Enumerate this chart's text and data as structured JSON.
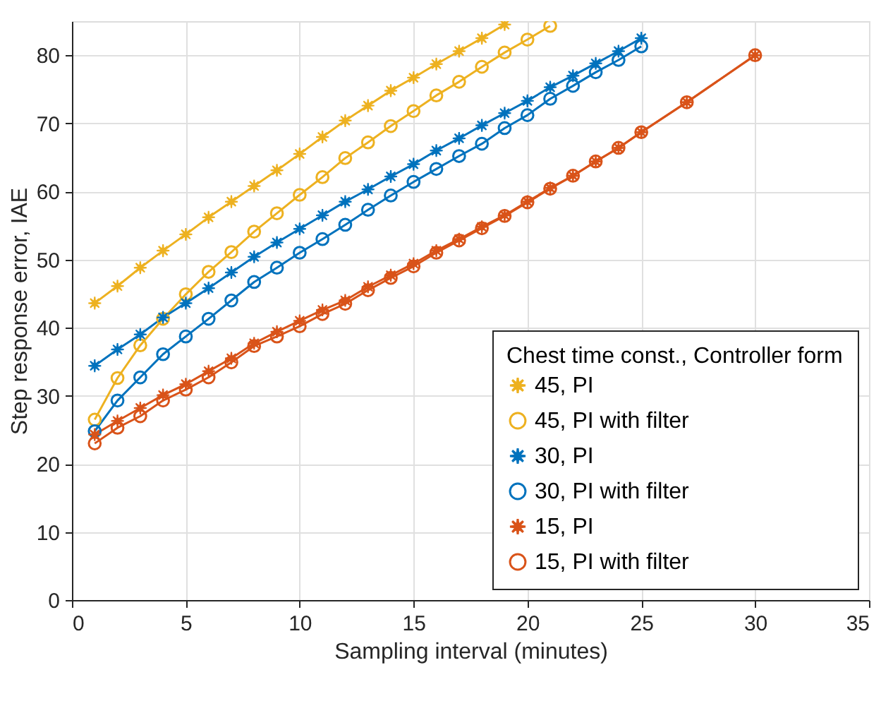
{
  "chart_data": {
    "type": "line",
    "xlabel": "Sampling interval (minutes)",
    "ylabel": "Step response error, IAE",
    "legend_title": "Chest time const., Controller form",
    "legend": "bottom right",
    "grid": true,
    "xlim": [
      0,
      35
    ],
    "xticks": [
      0,
      5,
      10,
      15,
      20,
      25,
      30,
      35
    ],
    "ylim": [
      0,
      85
    ],
    "yticks": [
      0,
      10,
      20,
      30,
      40,
      50,
      60,
      70,
      80
    ],
    "series": [
      {
        "name": "45, PI",
        "color": "#edb120",
        "marker": "star",
        "x": [
          1,
          2,
          3,
          4,
          5,
          6,
          7,
          8,
          9,
          10,
          11,
          12,
          13,
          14,
          15,
          16,
          17,
          18,
          19
        ],
        "values": [
          43.6,
          46.1,
          48.8,
          51.3,
          53.7,
          56.2,
          58.5,
          60.8,
          63.1,
          65.5,
          68.0,
          70.4,
          72.6,
          74.8,
          76.7,
          78.7,
          80.6,
          82.5,
          84.5
        ]
      },
      {
        "name": "45, PI with filter",
        "color": "#edb120",
        "marker": "circle",
        "x": [
          1,
          2,
          3,
          4,
          5,
          6,
          7,
          8,
          9,
          10,
          11,
          12,
          13,
          14,
          15,
          16,
          17,
          18,
          19,
          20,
          21
        ],
        "values": [
          26.5,
          32.6,
          37.4,
          41.3,
          44.9,
          48.2,
          51.1,
          54.1,
          56.8,
          59.5,
          62.1,
          64.9,
          67.2,
          69.6,
          71.8,
          74.1,
          76.1,
          78.3,
          80.4,
          82.3,
          84.3
        ]
      },
      {
        "name": "30, PI",
        "color": "#0072bd",
        "marker": "star",
        "x": [
          1,
          2,
          3,
          4,
          5,
          6,
          7,
          8,
          9,
          10,
          11,
          12,
          13,
          14,
          15,
          16,
          17,
          18,
          19,
          20,
          21,
          22,
          23,
          24,
          25
        ],
        "values": [
          34.4,
          36.8,
          39.0,
          41.5,
          43.6,
          45.8,
          48.1,
          50.4,
          52.5,
          54.5,
          56.5,
          58.5,
          60.3,
          62.2,
          64.0,
          66.0,
          67.8,
          69.7,
          71.5,
          73.3,
          75.3,
          77.0,
          78.8,
          80.6,
          82.5
        ]
      },
      {
        "name": "30, PI with filter",
        "color": "#0072bd",
        "marker": "circle",
        "x": [
          1,
          2,
          3,
          4,
          5,
          6,
          7,
          8,
          9,
          10,
          11,
          12,
          13,
          14,
          15,
          16,
          17,
          18,
          19,
          20,
          21,
          22,
          23,
          24,
          25
        ],
        "values": [
          24.8,
          29.3,
          32.7,
          36.1,
          38.7,
          41.3,
          44.0,
          46.7,
          48.8,
          51.0,
          53.0,
          55.1,
          57.3,
          59.4,
          61.4,
          63.3,
          65.2,
          67.0,
          69.3,
          71.2,
          73.6,
          75.5,
          77.5,
          79.3,
          81.3
        ]
      },
      {
        "name": "15, PI",
        "color": "#d95319",
        "marker": "star",
        "x": [
          1,
          2,
          3,
          4,
          5,
          6,
          7,
          8,
          9,
          10,
          11,
          12,
          13,
          14,
          15,
          16,
          17,
          18,
          19,
          20,
          21,
          22,
          23,
          24,
          25,
          27,
          30
        ],
        "values": [
          24.3,
          26.3,
          28.2,
          30.1,
          31.7,
          33.6,
          35.5,
          37.7,
          39.4,
          41.0,
          42.6,
          44.0,
          46.0,
          47.7,
          49.4,
          51.3,
          53.0,
          54.8,
          56.5,
          58.5,
          60.5,
          62.3,
          64.4,
          66.4,
          68.7,
          73.1,
          80.0
        ]
      },
      {
        "name": "15, PI with filter",
        "color": "#d95319",
        "marker": "circle",
        "x": [
          1,
          2,
          3,
          4,
          5,
          6,
          7,
          8,
          9,
          10,
          11,
          12,
          13,
          14,
          15,
          16,
          17,
          18,
          19,
          20,
          21,
          22,
          23,
          24,
          25,
          27,
          30
        ],
        "values": [
          23.0,
          25.3,
          27.0,
          29.3,
          30.9,
          32.7,
          34.9,
          37.3,
          38.7,
          40.2,
          42.0,
          43.5,
          45.5,
          47.3,
          49.0,
          51.0,
          52.8,
          54.6,
          56.4,
          58.4,
          60.4,
          62.3,
          64.4,
          66.4,
          68.7,
          73.1,
          80.0
        ]
      }
    ]
  }
}
